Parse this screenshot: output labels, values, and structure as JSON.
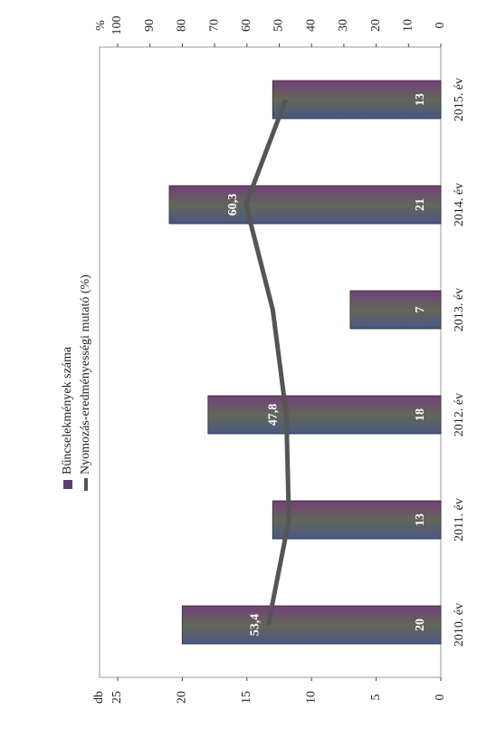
{
  "chart_data": {
    "type": "bar_line",
    "categories": [
      "2010. év",
      "2011. év",
      "2012. év",
      "2013. év",
      "2014. év",
      "2015. év"
    ],
    "y_label": "db",
    "y2_label": "%",
    "ylim": [
      0,
      25
    ],
    "yticks": [
      0,
      5,
      10,
      15,
      20,
      25
    ],
    "y2lim": [
      0,
      100
    ],
    "y2ticks": [
      0,
      10,
      20,
      30,
      40,
      50,
      60,
      70,
      80,
      90,
      100
    ],
    "series": [
      {
        "name": "Bűncselekmények száma",
        "type": "bar",
        "color": "#5b3f78",
        "values": [
          20,
          13,
          18,
          7,
          21,
          13
        ]
      },
      {
        "name": "Nyomozás-eredményességi mutató (%)",
        "type": "line",
        "axis": "y2",
        "color": "#555555",
        "values": [
          53.4,
          47,
          47.8,
          52,
          60.3,
          48
        ],
        "value_labels": [
          "53,4",
          null,
          "47,8",
          null,
          "60,3",
          null
        ]
      }
    ]
  }
}
